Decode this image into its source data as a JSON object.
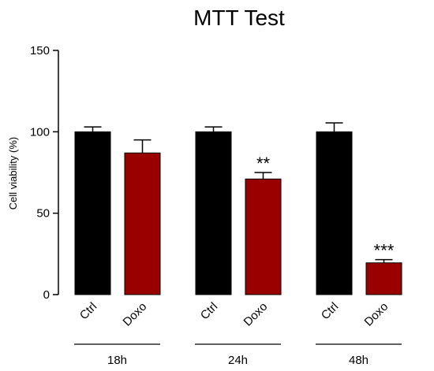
{
  "chart_data": {
    "type": "bar",
    "title": "MTT Test",
    "xlabel": "",
    "ylabel": "Cell viability (%)",
    "ylim": [
      0,
      150
    ],
    "yticks": [
      0,
      50,
      100,
      150
    ],
    "grid": false,
    "groups": [
      {
        "label": "18h",
        "bars": [
          {
            "category": "Ctrl",
            "value": 100,
            "error": 3,
            "color": "#000000",
            "significance": ""
          },
          {
            "category": "Doxo",
            "value": 87,
            "error": 8,
            "color": "#990000",
            "significance": ""
          }
        ]
      },
      {
        "label": "24h",
        "bars": [
          {
            "category": "Ctrl",
            "value": 100,
            "error": 3,
            "color": "#000000",
            "significance": ""
          },
          {
            "category": "Doxo",
            "value": 71,
            "error": 4,
            "color": "#990000",
            "significance": "**"
          }
        ]
      },
      {
        "label": "48h",
        "bars": [
          {
            "category": "Ctrl",
            "value": 100,
            "error": 5.5,
            "color": "#000000",
            "significance": ""
          },
          {
            "category": "Doxo",
            "value": 19.5,
            "error": 2,
            "color": "#990000",
            "significance": "***"
          }
        ]
      }
    ]
  }
}
